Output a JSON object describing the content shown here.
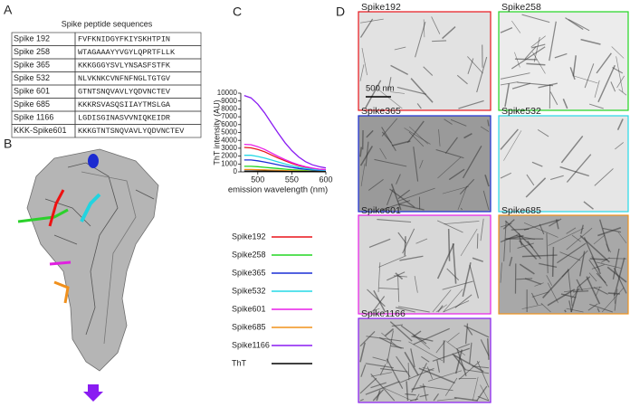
{
  "panels": [
    "A",
    "B",
    "C",
    "D"
  ],
  "table": {
    "title": "Spike peptide sequences",
    "rows": [
      [
        "Spike 192",
        "FVFKNIDGYFKIYSKHTPIN"
      ],
      [
        "Spike 258",
        "WTAGAAAYYVGYLQPRTFLLK"
      ],
      [
        "Spike 365",
        "KKKGGGYSVLYNSASFSTFK"
      ],
      [
        "Spike 532",
        "NLVKNKCVNFNFNGLTGTGV"
      ],
      [
        "Spike 601",
        "GTNTSNQVAVLYQDVNCTEV"
      ],
      [
        "Spike 685",
        "KKKRSVASQSIIAYTMSLGA"
      ],
      [
        "Spike 1166",
        "LGDISGINASVVNIQKEIDR"
      ],
      [
        "KKK-Spike601",
        "KKKGTNTSNQVAVLYQDVNCTEV"
      ]
    ]
  },
  "chart_data": {
    "type": "line",
    "ylabel": "ThT intensity (AU)",
    "xlabel": "emission wavelength (nm)",
    "x": [
      480,
      490,
      500,
      510,
      520,
      530,
      540,
      550,
      560,
      570,
      580,
      590,
      600
    ],
    "xlim": [
      475,
      600
    ],
    "xticks": [
      500,
      550,
      600
    ],
    "ylim": [
      0,
      10000
    ],
    "yticks": [
      0,
      1000,
      2000,
      3000,
      4000,
      5000,
      6000,
      7000,
      8000,
      9000,
      10000
    ],
    "series": [
      {
        "name": "Spike192",
        "color": "#e8141a",
        "values": [
          3100,
          3050,
          2850,
          2550,
          2150,
          1750,
          1400,
          1080,
          800,
          600,
          440,
          330,
          260
        ]
      },
      {
        "name": "Spike258",
        "color": "#22d622",
        "values": [
          700,
          700,
          650,
          580,
          500,
          420,
          340,
          270,
          210,
          160,
          120,
          90,
          70
        ]
      },
      {
        "name": "Spike365",
        "color": "#1a2ed6",
        "values": [
          1500,
          1500,
          1400,
          1250,
          1080,
          900,
          720,
          560,
          430,
          320,
          240,
          180,
          140
        ]
      },
      {
        "name": "Spike532",
        "color": "#25d8e6",
        "values": [
          2100,
          2100,
          1950,
          1750,
          1500,
          1250,
          1000,
          780,
          590,
          440,
          330,
          250,
          200
        ]
      },
      {
        "name": "Spike601",
        "color": "#e81ee8",
        "values": [
          3500,
          3450,
          3200,
          2850,
          2400,
          1950,
          1550,
          1200,
          900,
          650,
          480,
          350,
          280
        ]
      },
      {
        "name": "Spike685",
        "color": "#f0921c",
        "values": [
          300,
          300,
          280,
          250,
          220,
          190,
          160,
          130,
          100,
          80,
          60,
          50,
          40
        ]
      },
      {
        "name": "Spike1166",
        "color": "#8a1cf2",
        "values": [
          9700,
          9400,
          8600,
          7500,
          6200,
          4900,
          3700,
          2700,
          1900,
          1300,
          900,
          650,
          500
        ]
      },
      {
        "name": "ThT",
        "color": "#000000",
        "values": [
          100,
          100,
          95,
          90,
          80,
          70,
          60,
          50,
          40,
          35,
          30,
          25,
          20
        ]
      }
    ]
  },
  "images": [
    {
      "label": "Spike192",
      "color": "#e8141a",
      "scale_bar": "500 nm"
    },
    {
      "label": "Spike258",
      "color": "#22d622"
    },
    {
      "label": "Spike365",
      "color": "#1a2ed6"
    },
    {
      "label": "Spike532",
      "color": "#25d8e6"
    },
    {
      "label": "Spike601",
      "color": "#e81ee8"
    },
    {
      "label": "Spike685",
      "color": "#f0921c"
    },
    {
      "label": "Spike1166",
      "color": "#8a1cf2"
    }
  ]
}
